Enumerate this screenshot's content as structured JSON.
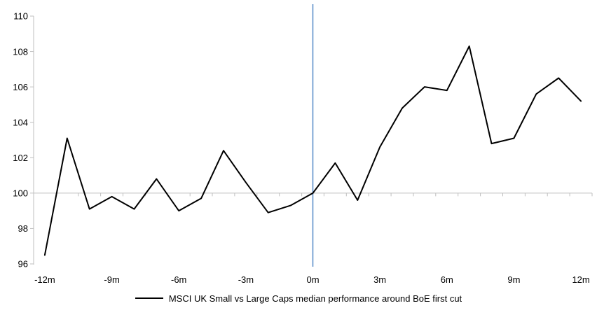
{
  "chart_data": {
    "type": "line",
    "legend": "MSCI UK Small vs Large Caps median performance around BoE first cut",
    "x": [
      -12,
      -11,
      -10,
      -9,
      -8,
      -7,
      -6,
      -5,
      -4,
      -3,
      -2,
      -1,
      0,
      1,
      2,
      3,
      4,
      5,
      6,
      7,
      8,
      9,
      10,
      11,
      12
    ],
    "series": [
      {
        "name": "MSCI UK Small vs Large Caps median performance around BoE first cut",
        "values": [
          96.5,
          103.1,
          99.1,
          99.8,
          99.1,
          100.8,
          99.0,
          99.7,
          102.4,
          100.6,
          98.9,
          99.3,
          100.0,
          101.7,
          99.6,
          102.6,
          104.8,
          106.0,
          105.8,
          108.3,
          102.8,
          103.1,
          105.6,
          106.5,
          105.2
        ]
      }
    ],
    "xlabel": "",
    "ylabel": "",
    "ylim": [
      96,
      110
    ],
    "y_ticks": [
      96,
      98,
      100,
      102,
      104,
      106,
      108,
      110
    ],
    "x_tick_months": [
      -12,
      -9,
      -6,
      -3,
      0,
      3,
      6,
      9,
      12
    ],
    "x_tick_labels": [
      "-12m",
      "-9m",
      "-6m",
      "-3m",
      "0m",
      "3m",
      "6m",
      "9m",
      "12m"
    ],
    "baseline_y": 100,
    "event_line_x": 0,
    "grid": "baseline-only",
    "legend_position": "bottom-center",
    "colors": {
      "series": "#000000",
      "event_line": "#5589C8",
      "axis": "#BFBFBF",
      "text": "#000000",
      "background": "#FFFFFF"
    }
  }
}
